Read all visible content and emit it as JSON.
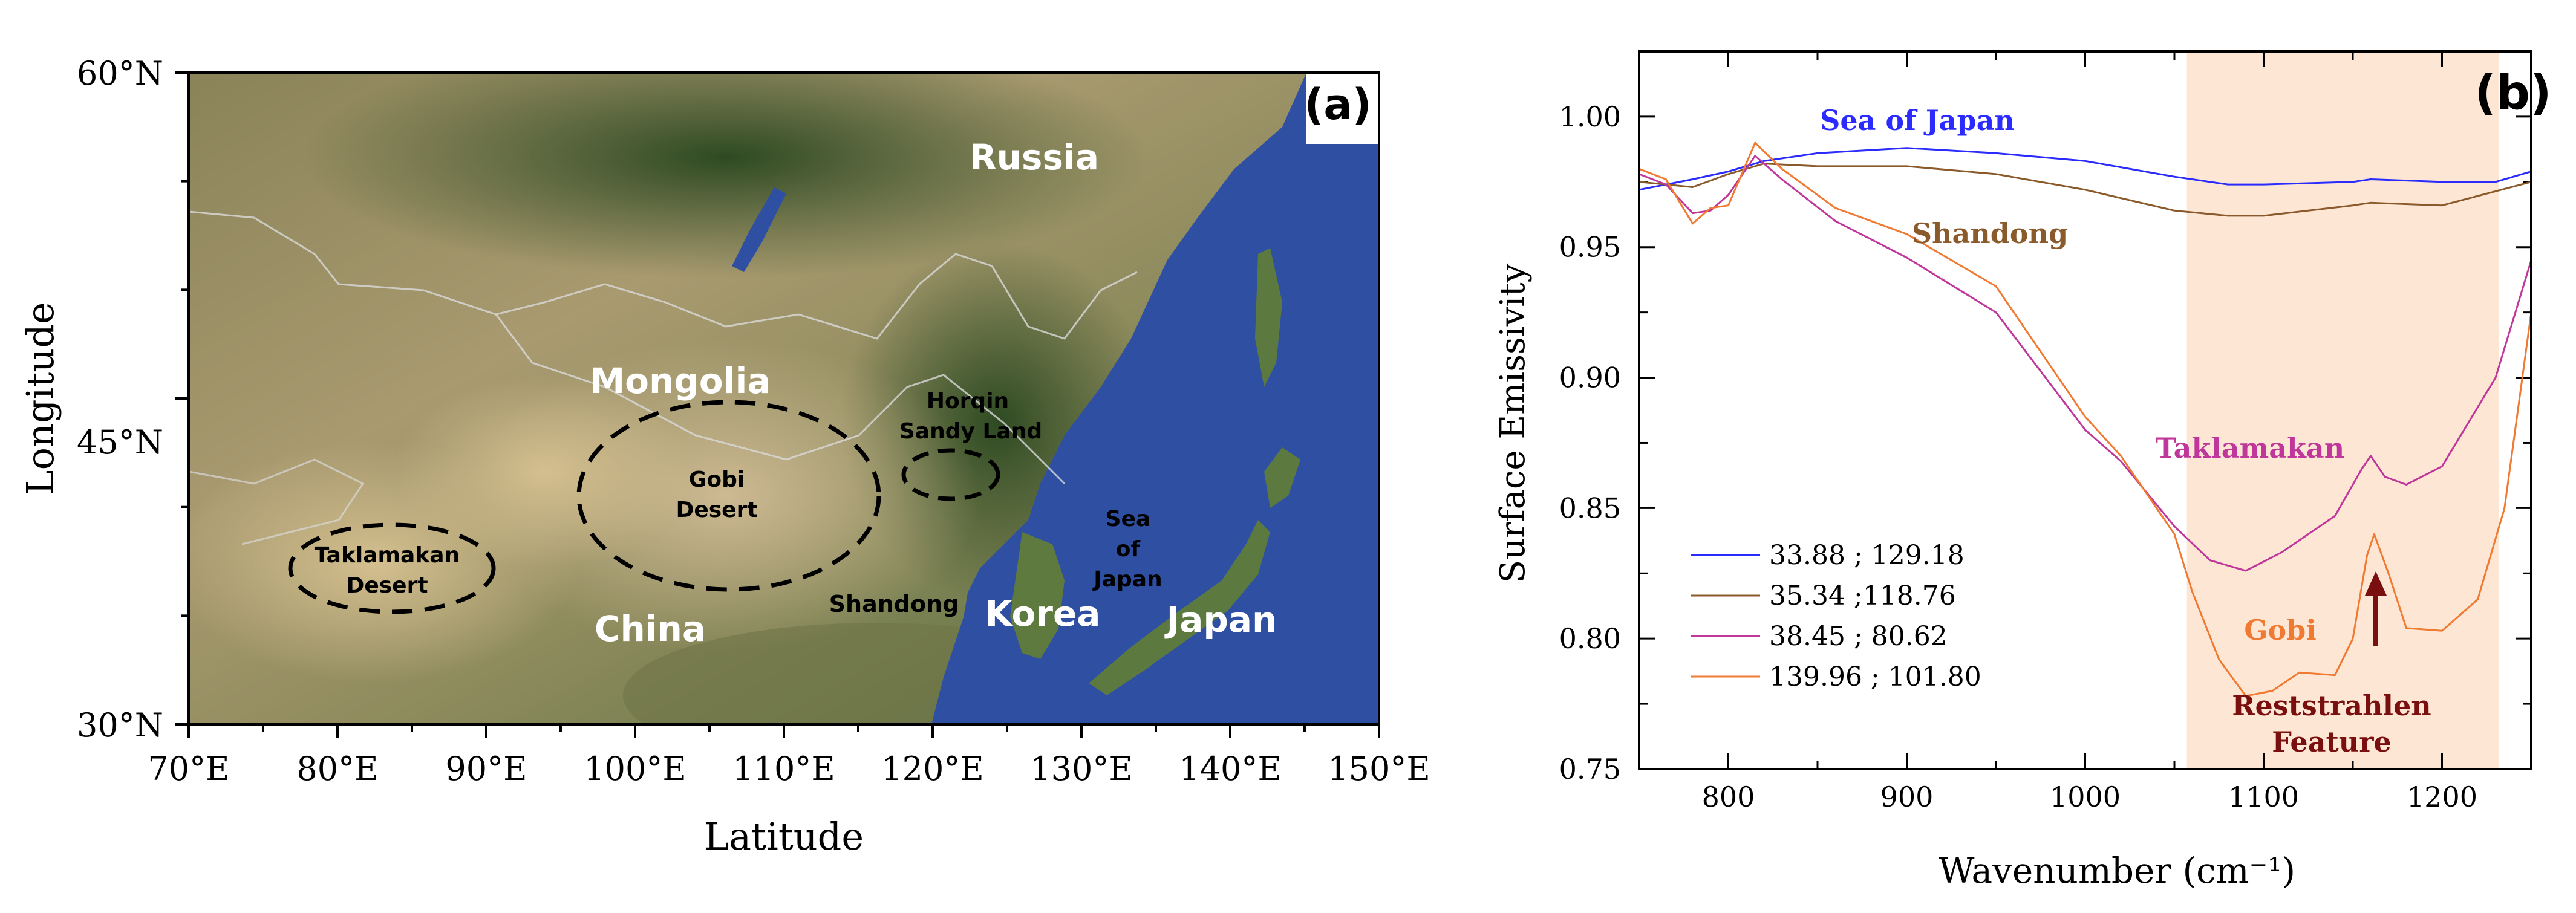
{
  "panel_a": {
    "tag": "(a)",
    "xlabel": "Latitude",
    "ylabel": "Longitude",
    "x_ticks": [
      "70°E",
      "80°E",
      "90°E",
      "100°E",
      "110°E",
      "120°E",
      "130°E",
      "140°E",
      "150°E"
    ],
    "y_ticks": [
      "60°N",
      "45°N",
      "30°N"
    ],
    "labels": {
      "russia": "Russia",
      "mongolia": "Mongolia",
      "china": "China",
      "korea": "Korea",
      "japan": "Japan",
      "shandong": "Shandong",
      "sea_line1": "Sea",
      "sea_line2": "of",
      "sea_line3": "Japan",
      "gobi_line1": "Gobi",
      "gobi_line2": "Desert",
      "taklamakan_line1": "Taklamakan",
      "taklamakan_line2": "Desert",
      "horqin_line1": "Horqin",
      "horqin_line2": "Sandy Land"
    }
  },
  "panel_b": {
    "tag": "(b)",
    "colors": {
      "sea_of_japan": "#2b2bff",
      "shandong": "#8b5a2b",
      "taklamakan": "#c0379b",
      "gobi": "#f07a32",
      "band": "#fde7d4",
      "arrow": "#7a0f0f"
    },
    "annotations": {
      "sea_of_japan": "Sea of Japan",
      "shandong": "Shandong",
      "taklamakan": "Taklamakan",
      "gobi": "Gobi",
      "reststrahlen_line1": "Reststrahlen",
      "reststrahlen_line2": "Feature"
    },
    "legend": [
      "33.88 ; 129.18",
      "35.34 ;118.76",
      "38.45 ; 80.62",
      "139.96 ; 101.80"
    ]
  },
  "chart_data": {
    "type": "line",
    "xlabel": "Wavenumber (cm⁻¹)",
    "ylabel": "Surface Emissivity",
    "xlim": [
      750,
      1250
    ],
    "ylim": [
      0.75,
      1.025
    ],
    "x_ticks": [
      800,
      900,
      1000,
      1100,
      1200
    ],
    "y_ticks": [
      "0.75",
      "0.80",
      "0.85",
      "0.90",
      "0.95",
      "1.00"
    ],
    "shaded_band": [
      1057,
      1232
    ],
    "series": [
      {
        "name": "33.88 ; 129.18",
        "x": [
          750,
          780,
          800,
          820,
          850,
          900,
          950,
          1000,
          1050,
          1080,
          1100,
          1150,
          1160,
          1200,
          1230,
          1250
        ],
        "y": [
          0.972,
          0.976,
          0.979,
          0.983,
          0.986,
          0.988,
          0.986,
          0.983,
          0.977,
          0.974,
          0.974,
          0.975,
          0.976,
          0.975,
          0.975,
          0.979
        ]
      },
      {
        "name": "35.34 ;118.76",
        "x": [
          750,
          780,
          800,
          820,
          850,
          900,
          950,
          1000,
          1050,
          1080,
          1100,
          1150,
          1160,
          1200,
          1250
        ],
        "y": [
          0.975,
          0.973,
          0.978,
          0.982,
          0.981,
          0.981,
          0.978,
          0.972,
          0.964,
          0.962,
          0.962,
          0.966,
          0.967,
          0.966,
          0.975
        ]
      },
      {
        "name": "38.45 ; 80.62",
        "x": [
          750,
          765,
          780,
          790,
          800,
          815,
          830,
          860,
          900,
          950,
          1000,
          1020,
          1050,
          1070,
          1090,
          1110,
          1140,
          1155,
          1160,
          1168,
          1180,
          1200,
          1230,
          1250
        ],
        "y": [
          0.978,
          0.974,
          0.963,
          0.964,
          0.97,
          0.985,
          0.976,
          0.96,
          0.946,
          0.925,
          0.88,
          0.868,
          0.843,
          0.83,
          0.826,
          0.833,
          0.847,
          0.865,
          0.87,
          0.862,
          0.859,
          0.866,
          0.9,
          0.945
        ]
      },
      {
        "name": "139.96 ; 101.80",
        "x": [
          750,
          765,
          780,
          790,
          800,
          815,
          830,
          860,
          900,
          950,
          1000,
          1020,
          1050,
          1060,
          1075,
          1090,
          1105,
          1120,
          1140,
          1150,
          1158,
          1162,
          1170,
          1180,
          1200,
          1220,
          1235,
          1250
        ],
        "y": [
          0.98,
          0.976,
          0.959,
          0.965,
          0.966,
          0.99,
          0.98,
          0.965,
          0.955,
          0.935,
          0.885,
          0.87,
          0.84,
          0.818,
          0.792,
          0.778,
          0.78,
          0.787,
          0.786,
          0.8,
          0.832,
          0.84,
          0.825,
          0.804,
          0.803,
          0.815,
          0.85,
          0.925
        ]
      }
    ]
  }
}
